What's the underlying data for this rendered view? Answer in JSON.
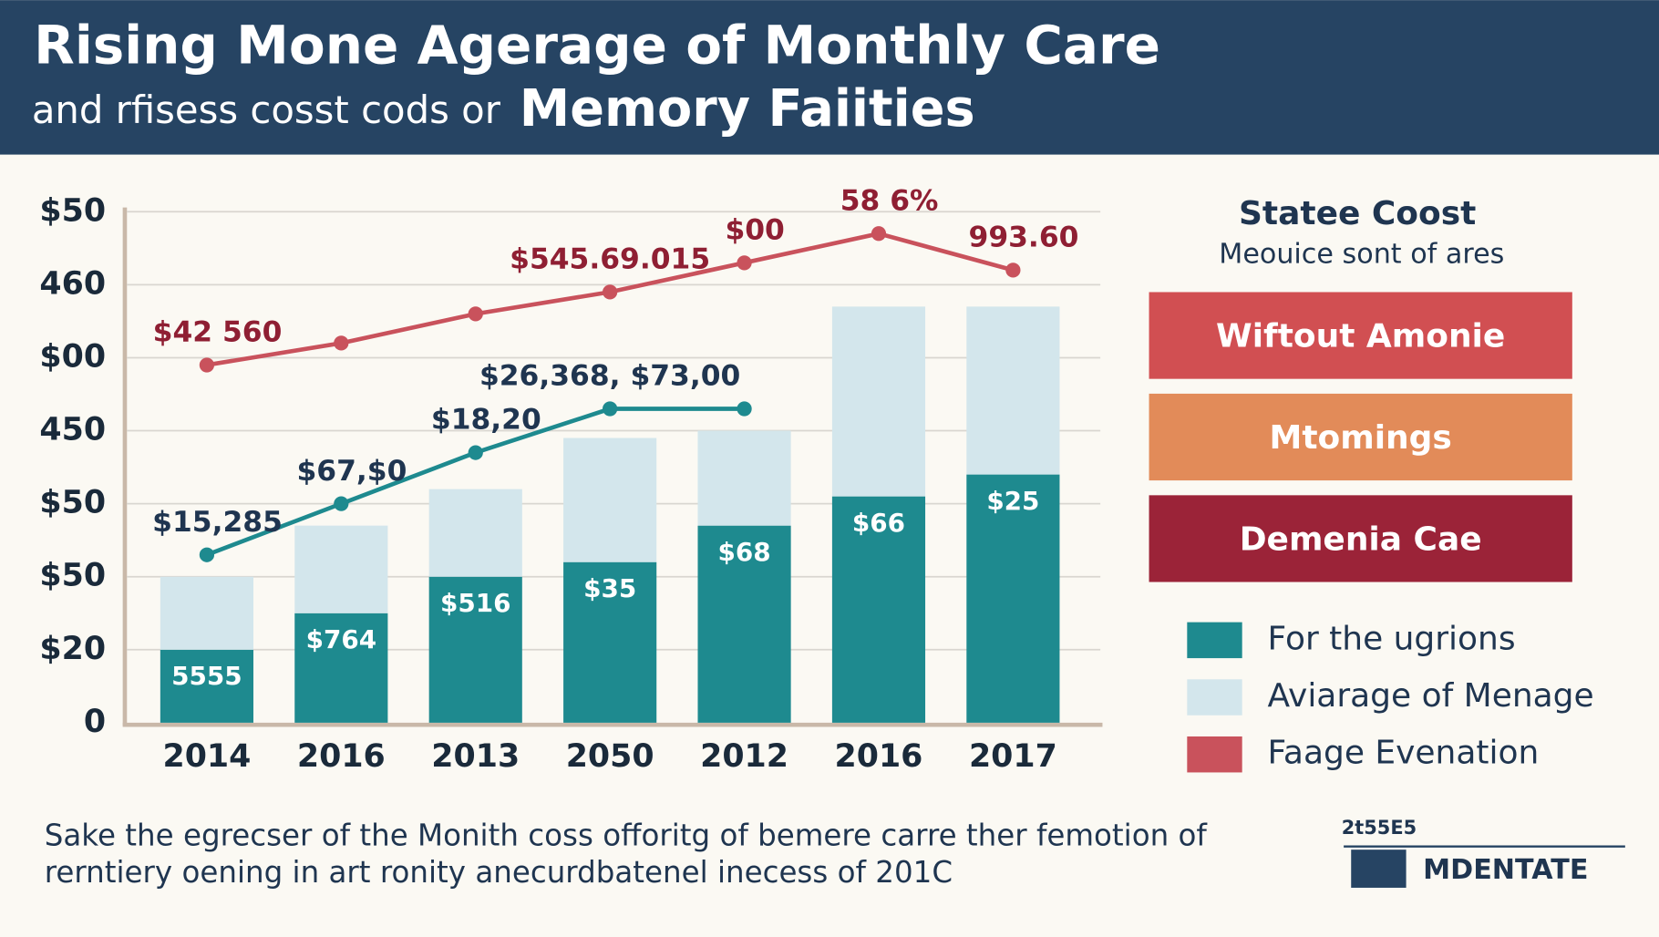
{
  "header": {
    "title": "Rising Mone Agerage of Monthly Care",
    "subtitle": "and rfisess cosst cods or",
    "subtitle_bold": "Memory Faiities"
  },
  "chart_data": {
    "type": "bar",
    "categories": [
      "2014",
      "2016",
      "2013",
      "2050",
      "2012",
      "2016",
      "2017"
    ],
    "ylim": [
      0,
      7
    ],
    "yticks": [
      {
        "value": 0,
        "label": "0"
      },
      {
        "value": 1,
        "label": "$20"
      },
      {
        "value": 2,
        "label": "$50"
      },
      {
        "value": 3,
        "label": "$50"
      },
      {
        "value": 4,
        "label": "450"
      },
      {
        "value": 5,
        "label": "$00"
      },
      {
        "value": 6,
        "label": "460"
      },
      {
        "value": 7,
        "label": "$50"
      }
    ],
    "grid": true,
    "series": [
      {
        "name": "For the ugrions",
        "kind": "bar",
        "color": "#1e8a8f",
        "values": [
          1.0,
          1.5,
          2.0,
          2.2,
          2.7,
          3.1,
          3.4
        ],
        "labels": [
          "5555",
          "$764",
          "$516",
          "$35",
          "$68",
          "$66",
          "$25"
        ]
      },
      {
        "name": "Aviarage of Menage",
        "kind": "bar",
        "color": "#d3e6ec",
        "values": [
          1.0,
          1.2,
          1.2,
          1.7,
          1.3,
          2.6,
          2.3
        ]
      },
      {
        "name": "Faage Evenation",
        "kind": "line",
        "color": "#c9525c",
        "label_color": "#8f1f33",
        "values": [
          4.9,
          5.2,
          5.6,
          5.9,
          6.3,
          6.7,
          6.2
        ],
        "labels": [
          "$42 560",
          null,
          null,
          "$545.69.015",
          "$00",
          "58 6%",
          "993.60"
        ]
      },
      {
        "kind": "line",
        "color": "#1e8a8f",
        "label_color": "#1f3550",
        "values": [
          2.3,
          3.0,
          3.7,
          4.3,
          4.3,
          null,
          null
        ],
        "labels": [
          "$15,285",
          "$67,$0",
          "$18,20",
          "$26,368, $73,00",
          null,
          null,
          null
        ]
      }
    ]
  },
  "panel": {
    "title": "Statee Coost",
    "subtitle": "Meouice sont of ares",
    "buttons": [
      {
        "label": "Wiftout Amonie",
        "color": "#d14f52"
      },
      {
        "label": "Mtomings",
        "color": "#e28b59"
      },
      {
        "label": "Demenia Cae",
        "color": "#9b2338"
      }
    ]
  },
  "footer": {
    "lines": [
      "Sake the egrecser of the Monith coss offoritg of bemere carre ther femotion of",
      "rerntiery oening in art ronity anecurdbatenel inecess of 201C"
    ],
    "code": "2t55E5",
    "brand": "MDENTATE"
  }
}
